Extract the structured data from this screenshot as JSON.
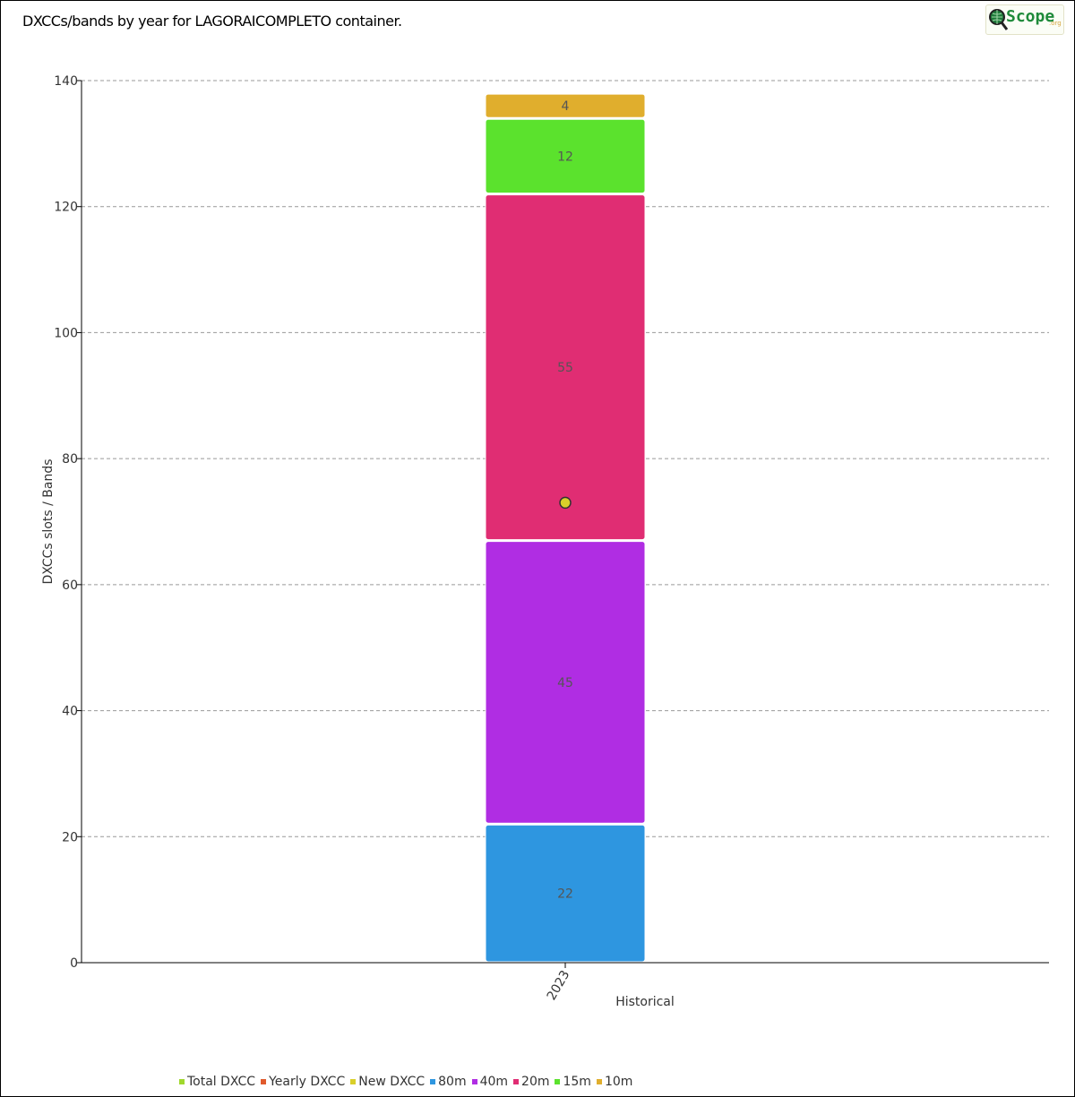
{
  "header": {
    "title": "DXCCs/bands by year for LAGORAICOMPLETO container.",
    "logo_text": "Scope",
    "logo_suffix": ".org"
  },
  "chart_data": {
    "type": "bar",
    "stacked": true,
    "categories": [
      "2023"
    ],
    "xlabel": "Historical",
    "ylabel": "DXCCs slots / Bands",
    "ylim": [
      0,
      140
    ],
    "yticks": [
      0,
      20,
      40,
      60,
      80,
      100,
      120,
      140
    ],
    "grid": true,
    "legend_position": "bottom-left",
    "series": [
      {
        "name": "80m",
        "values": [
          22
        ],
        "color": "#2e96e0"
      },
      {
        "name": "40m",
        "values": [
          45
        ],
        "color": "#b02de3"
      },
      {
        "name": "20m",
        "values": [
          55
        ],
        "color": "#e02d73"
      },
      {
        "name": "15m",
        "values": [
          12
        ],
        "color": "#5be22d"
      },
      {
        "name": "10m",
        "values": [
          4
        ],
        "color": "#e0ae2d"
      }
    ],
    "points": [
      {
        "name": "New DXCC",
        "category": "2023",
        "value": 73,
        "color": "#d9cf2a"
      }
    ],
    "legend": [
      {
        "name": "Total DXCC",
        "color": "#a0d82d"
      },
      {
        "name": "Yearly DXCC",
        "color": "#e05a2d"
      },
      {
        "name": "New DXCC",
        "color": "#d9cf2a"
      },
      {
        "name": "80m",
        "color": "#2e96e0"
      },
      {
        "name": "40m",
        "color": "#b02de3"
      },
      {
        "name": "20m",
        "color": "#e02d73"
      },
      {
        "name": "15m",
        "color": "#5be22d"
      },
      {
        "name": "10m",
        "color": "#e0ae2d"
      }
    ]
  }
}
